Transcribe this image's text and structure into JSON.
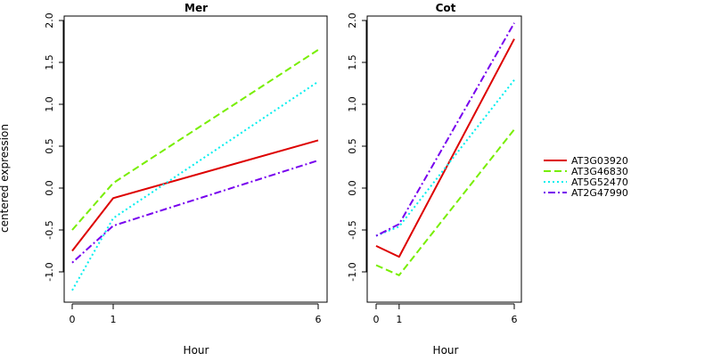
{
  "chart_data": [
    {
      "type": "line",
      "title": "Mer",
      "xlabel": "Hour",
      "ylabel": "centered expression",
      "categories": [
        "0",
        "1",
        "6"
      ],
      "ylim": [
        -1.35,
        2.1
      ],
      "yticks": [
        "-1.0",
        "-0.5",
        "0.0",
        "0.5",
        "1.0",
        "1.5",
        "2.0"
      ],
      "series": [
        {
          "name": "AT3G03920",
          "values": [
            -0.75,
            -0.12,
            0.57
          ]
        },
        {
          "name": "AT3G46830",
          "values": [
            -0.5,
            0.06,
            1.65
          ]
        },
        {
          "name": "AT5G52470",
          "values": [
            -1.22,
            -0.36,
            1.27
          ]
        },
        {
          "name": "AT2G47990",
          "values": [
            -0.89,
            -0.45,
            0.33
          ]
        }
      ]
    },
    {
      "type": "line",
      "title": "Cot",
      "xlabel": "Hour",
      "ylabel": "",
      "categories": [
        "0",
        "1",
        "6"
      ],
      "ylim": [
        -1.35,
        2.1
      ],
      "yticks": [
        "-1.0",
        "-0.5",
        "0.0",
        "0.5",
        "1.0",
        "1.5",
        "2.0"
      ],
      "series": [
        {
          "name": "AT3G03920",
          "values": [
            -0.69,
            -0.82,
            1.78
          ]
        },
        {
          "name": "AT3G46830",
          "values": [
            -0.92,
            -1.04,
            0.7
          ]
        },
        {
          "name": "AT5G52470",
          "values": [
            -0.57,
            -0.46,
            1.29
          ]
        },
        {
          "name": "AT2G47990",
          "values": [
            -0.57,
            -0.43,
            1.97
          ]
        }
      ]
    }
  ],
  "legend": {
    "placement": "right",
    "items": [
      {
        "label": "AT3G03920",
        "color": "#dd0000",
        "dash": "solid"
      },
      {
        "label": "AT3G46830",
        "color": "#77ee00",
        "dash": "dashed"
      },
      {
        "label": "AT5G52470",
        "color": "#00eeee",
        "dash": "dotted"
      },
      {
        "label": "AT2G47990",
        "color": "#7700ee",
        "dash": "dotdash"
      }
    ]
  }
}
